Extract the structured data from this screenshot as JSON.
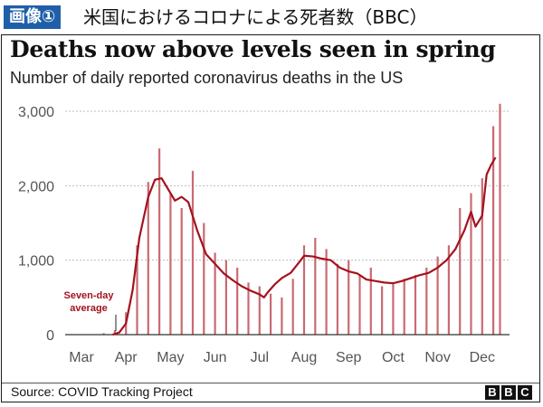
{
  "header": {
    "tag": "画像①",
    "caption": "米国におけるコロナによる死者数（BBC）"
  },
  "chart_data": {
    "type": "bar",
    "title": "Deaths now above levels seen in spring",
    "subtitle": "Number of daily reported coronavirus deaths in the US",
    "xlabel": "",
    "ylabel": "",
    "ylim": [
      0,
      3000
    ],
    "yticks": [
      0,
      1000,
      2000,
      3000
    ],
    "ytick_labels": [
      "0",
      "1,000",
      "2,000",
      "3,000"
    ],
    "xtick_labels": [
      "Mar",
      "Apr",
      "May",
      "Jun",
      "Jul",
      "Aug",
      "Sep",
      "Oct",
      "Nov",
      "Dec"
    ],
    "grid": true,
    "annotation": {
      "text_line1": "Seven-day",
      "text_line2": "average"
    },
    "bar_color": "#c96a72",
    "line_color": "#a3121e",
    "series": [
      {
        "kind": "bars",
        "x": [
          0,
          0.25,
          0.5,
          0.75,
          1.0,
          1.25,
          1.5,
          1.75,
          2.0,
          2.25,
          2.5,
          2.75,
          3.0,
          3.25,
          3.5,
          3.75,
          4.0,
          4.25,
          4.5,
          4.75,
          5.0,
          5.25,
          5.5,
          5.75,
          6.0,
          6.25,
          6.5,
          6.75,
          7.0,
          7.25,
          7.5,
          7.75,
          8.0,
          8.25,
          8.5,
          8.75,
          9.0,
          9.25,
          9.4
        ],
        "values": [
          0,
          0,
          20,
          60,
          300,
          1200,
          2050,
          2500,
          1900,
          1700,
          2200,
          1500,
          1100,
          1000,
          900,
          700,
          650,
          550,
          500,
          750,
          1200,
          1300,
          1150,
          950,
          1000,
          800,
          900,
          650,
          700,
          750,
          800,
          900,
          1050,
          1200,
          1700,
          1900,
          2100,
          2800,
          3100
        ]
      },
      {
        "kind": "line",
        "name": "",
        "x": [
          0.7,
          0.85,
          1.0,
          1.15,
          1.3,
          1.5,
          1.65,
          1.8,
          1.95,
          2.1,
          2.25,
          2.4,
          2.6,
          2.8,
          3.0,
          3.2,
          3.4,
          3.6,
          3.8,
          4.0,
          4.1,
          4.2,
          4.35,
          4.5,
          4.7,
          4.9,
          5.0,
          5.2,
          5.4,
          5.6,
          5.8,
          6.0,
          6.2,
          6.4,
          6.6,
          6.8,
          7.0,
          7.2,
          7.4,
          7.6,
          7.8,
          8.0,
          8.2,
          8.4,
          8.6,
          8.75,
          8.85,
          9.0,
          9.1,
          9.2,
          9.3
        ],
        "values": [
          0,
          30,
          150,
          600,
          1300,
          1850,
          2080,
          2100,
          1950,
          1800,
          1850,
          1780,
          1400,
          1080,
          950,
          820,
          730,
          650,
          590,
          540,
          500,
          580,
          680,
          760,
          830,
          980,
          1060,
          1050,
          1020,
          1000,
          900,
          850,
          820,
          740,
          720,
          700,
          690,
          720,
          760,
          800,
          830,
          900,
          1000,
          1150,
          1400,
          1650,
          1450,
          1600,
          2150,
          2280,
          2380
        ]
      }
    ]
  },
  "footer": {
    "source": "Source: COVID Tracking Project",
    "logo_letters": [
      "B",
      "B",
      "C"
    ]
  }
}
